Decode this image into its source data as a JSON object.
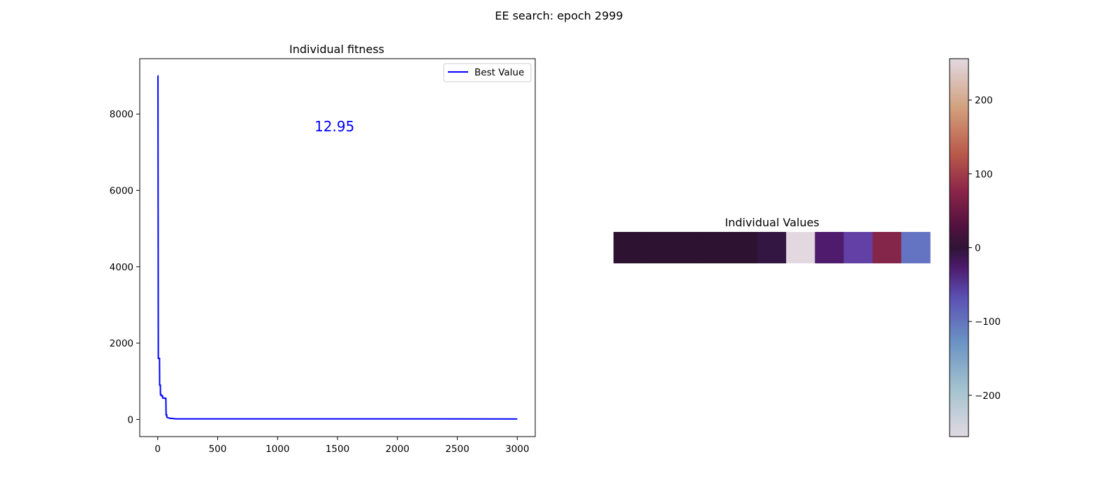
{
  "figure": {
    "suptitle": "EE search: epoch 2999"
  },
  "chart_data": [
    {
      "type": "line",
      "title": "Individual fitness",
      "xlabel": "",
      "ylabel": "",
      "xlim": [
        -150,
        3150
      ],
      "ylim": [
        -450,
        9450
      ],
      "xticks": [
        0,
        500,
        1000,
        1500,
        2000,
        2500,
        3000
      ],
      "yticks": [
        0,
        2000,
        4000,
        6000,
        8000
      ],
      "grid": false,
      "legend": {
        "placement": "top-right",
        "entries": [
          "Best Value"
        ]
      },
      "annotation": {
        "text": "12.95",
        "x": 1475,
        "y": 7550,
        "color": "#0000ff"
      },
      "series": [
        {
          "name": "Best Value",
          "color": "#0000ff",
          "x": [
            0,
            2,
            5,
            8,
            10,
            15,
            16,
            22,
            23,
            28,
            29,
            40,
            41,
            60,
            61,
            68,
            70,
            75,
            76,
            85,
            90,
            100,
            120,
            150,
            3000
          ],
          "y": [
            9000,
            9000,
            1600,
            1600,
            1600,
            1600,
            900,
            900,
            650,
            650,
            620,
            620,
            560,
            560,
            550,
            550,
            120,
            120,
            60,
            45,
            40,
            30,
            25,
            14,
            12.95
          ]
        }
      ]
    },
    {
      "type": "heatmap",
      "title": "Individual Values",
      "values": [
        20,
        18,
        15,
        12,
        15,
        10,
        253,
        -40,
        -95,
        90,
        -125
      ],
      "colormap": "twilight",
      "vmin": -256,
      "vmax": 256,
      "colorbar_ticks": [
        -200,
        -100,
        0,
        100,
        200
      ],
      "colorbar_tick_labels": [
        "−200",
        "−100",
        "0",
        "100",
        "200"
      ],
      "cell_colors": [
        "#2d1231",
        "#2d1231",
        "#2d1231",
        "#2d1231",
        "#2e1232",
        "#341642",
        "#e3d8e0",
        "#4f1b6c",
        "#6340a6",
        "#84264a",
        "#6474c2"
      ]
    }
  ]
}
